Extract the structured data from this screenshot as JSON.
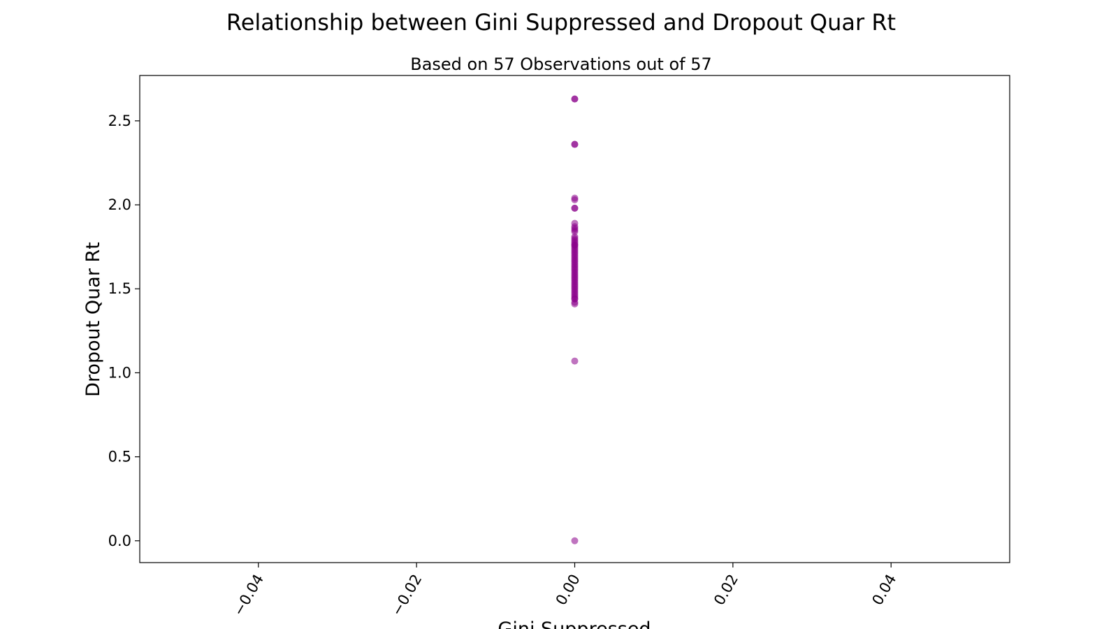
{
  "chart_data": {
    "type": "scatter",
    "title": "Relationship between Gini Suppressed and Dropout Quar Rt",
    "subtitle": "Based on 57 Observations out of 57",
    "xlabel": "Gini Suppressed",
    "ylabel": "Dropout Quar Rt",
    "xlim": [
      -0.055,
      0.055
    ],
    "ylim": [
      -0.13,
      2.77
    ],
    "x_ticks": [
      -0.04,
      -0.02,
      0.0,
      0.02,
      0.04
    ],
    "x_tick_labels": [
      "−0.04",
      "−0.02",
      "0.00",
      "0.02",
      "0.04"
    ],
    "y_ticks": [
      0.0,
      0.5,
      1.0,
      1.5,
      2.0,
      2.5
    ],
    "y_tick_labels": [
      "0.0",
      "0.5",
      "1.0",
      "1.5",
      "2.0",
      "2.5"
    ],
    "grid": false,
    "marker_color": "#8b008b",
    "marker_alpha": 0.55,
    "points": [
      {
        "x": 0,
        "y": 2.63
      },
      {
        "x": 0,
        "y": 2.63
      },
      {
        "x": 0,
        "y": 2.36
      },
      {
        "x": 0,
        "y": 2.36
      },
      {
        "x": 0,
        "y": 2.04
      },
      {
        "x": 0,
        "y": 2.03
      },
      {
        "x": 0,
        "y": 1.98
      },
      {
        "x": 0,
        "y": 1.98
      },
      {
        "x": 0,
        "y": 1.89
      },
      {
        "x": 0,
        "y": 1.87
      },
      {
        "x": 0,
        "y": 1.86
      },
      {
        "x": 0,
        "y": 1.85
      },
      {
        "x": 0,
        "y": 1.84
      },
      {
        "x": 0,
        "y": 1.81
      },
      {
        "x": 0,
        "y": 1.8
      },
      {
        "x": 0,
        "y": 1.79
      },
      {
        "x": 0,
        "y": 1.78
      },
      {
        "x": 0,
        "y": 1.77
      },
      {
        "x": 0,
        "y": 1.76
      },
      {
        "x": 0,
        "y": 1.76
      },
      {
        "x": 0,
        "y": 1.75
      },
      {
        "x": 0,
        "y": 1.74
      },
      {
        "x": 0,
        "y": 1.73
      },
      {
        "x": 0,
        "y": 1.72
      },
      {
        "x": 0,
        "y": 1.71
      },
      {
        "x": 0,
        "y": 1.7
      },
      {
        "x": 0,
        "y": 1.69
      },
      {
        "x": 0,
        "y": 1.68
      },
      {
        "x": 0,
        "y": 1.67
      },
      {
        "x": 0,
        "y": 1.66
      },
      {
        "x": 0,
        "y": 1.65
      },
      {
        "x": 0,
        "y": 1.64
      },
      {
        "x": 0,
        "y": 1.63
      },
      {
        "x": 0,
        "y": 1.62
      },
      {
        "x": 0,
        "y": 1.61
      },
      {
        "x": 0,
        "y": 1.6
      },
      {
        "x": 0,
        "y": 1.59
      },
      {
        "x": 0,
        "y": 1.58
      },
      {
        "x": 0,
        "y": 1.57
      },
      {
        "x": 0,
        "y": 1.56
      },
      {
        "x": 0,
        "y": 1.55
      },
      {
        "x": 0,
        "y": 1.54
      },
      {
        "x": 0,
        "y": 1.53
      },
      {
        "x": 0,
        "y": 1.52
      },
      {
        "x": 0,
        "y": 1.51
      },
      {
        "x": 0,
        "y": 1.5
      },
      {
        "x": 0,
        "y": 1.49
      },
      {
        "x": 0,
        "y": 1.48
      },
      {
        "x": 0,
        "y": 1.47
      },
      {
        "x": 0,
        "y": 1.46
      },
      {
        "x": 0,
        "y": 1.45
      },
      {
        "x": 0,
        "y": 1.44
      },
      {
        "x": 0,
        "y": 1.44
      },
      {
        "x": 0,
        "y": 1.42
      },
      {
        "x": 0,
        "y": 1.41
      },
      {
        "x": 0,
        "y": 1.07
      },
      {
        "x": 0,
        "y": 0.0
      }
    ]
  }
}
